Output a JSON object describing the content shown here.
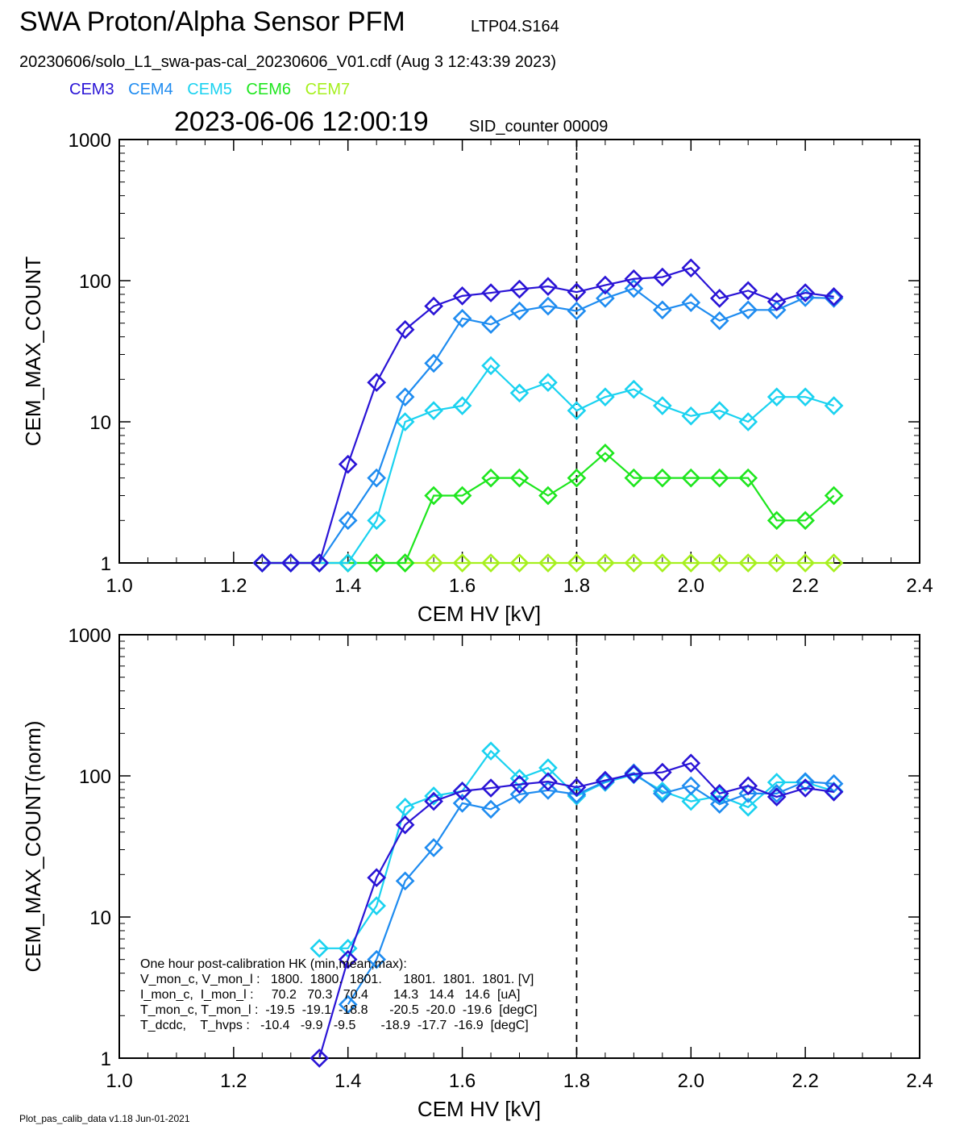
{
  "header": {
    "title": "SWA Proton/Alpha Sensor PFM",
    "file_id": "LTP04.S164",
    "file_line": "20230606/solo_L1_swa-pas-cal_20230606_V01.cdf  (Aug  3 12:43:39 2023)",
    "timestamp": "2023-06-06 12:00:19",
    "sid": "SID_counter 00009"
  },
  "legend": [
    {
      "label": "CEM3",
      "color": "#2a14d6"
    },
    {
      "label": "CEM4",
      "color": "#1f8cf0"
    },
    {
      "label": "CEM5",
      "color": "#1ad2f0"
    },
    {
      "label": "CEM6",
      "color": "#1ee61e"
    },
    {
      "label": "CEM7",
      "color": "#a6f01e"
    }
  ],
  "footer": "Plot_pas_calib_data v1.18 Jun-01-2021",
  "chart_data": [
    {
      "type": "line",
      "xlabel": "CEM HV [kV]",
      "ylabel": "CEM_MAX_COUNT",
      "xlim": [
        1.0,
        2.4
      ],
      "ylim": [
        1,
        1000
      ],
      "yscale": "log",
      "xticks": [
        "1.0",
        "1.2",
        "1.4",
        "1.6",
        "1.8",
        "2.0",
        "2.2",
        "2.4"
      ],
      "yticks": [
        "1",
        "10",
        "100",
        "1000"
      ],
      "vline": 1.8,
      "x": [
        1.25,
        1.3,
        1.35,
        1.4,
        1.45,
        1.5,
        1.55,
        1.6,
        1.65,
        1.7,
        1.75,
        1.8,
        1.85,
        1.9,
        1.95,
        2.0,
        2.05,
        2.1,
        2.15,
        2.2,
        2.25
      ],
      "series": [
        {
          "name": "CEM3",
          "color": "#2a14d6",
          "values": [
            1,
            1,
            1,
            5,
            19,
            45,
            66,
            78,
            82,
            87,
            91,
            83,
            93,
            103,
            106,
            123,
            75,
            85,
            71,
            82,
            77
          ]
        },
        {
          "name": "CEM4",
          "color": "#1f8cf0",
          "values": [
            1,
            1,
            1,
            2,
            4,
            15,
            26,
            54,
            49,
            61,
            66,
            61,
            75,
            88,
            62,
            70,
            52,
            62,
            62,
            76,
            75
          ]
        },
        {
          "name": "CEM5",
          "color": "#1ad2f0",
          "values": [
            1,
            1,
            1,
            1,
            2,
            10,
            12,
            13,
            25,
            16,
            19,
            12,
            15,
            17,
            13,
            11,
            12,
            10,
            15,
            15,
            13
          ]
        },
        {
          "name": "CEM6",
          "color": "#1ee61e",
          "values": [
            1,
            1,
            1,
            1,
            1,
            1,
            3,
            3,
            4,
            4,
            3,
            4,
            6,
            4,
            4,
            4,
            4,
            4,
            2,
            2,
            3
          ]
        },
        {
          "name": "CEM7",
          "color": "#a6f01e",
          "values": [
            1,
            1,
            1,
            1,
            1,
            1,
            1,
            1,
            1,
            1,
            1,
            1,
            1,
            1,
            1,
            1,
            1,
            1,
            1,
            1,
            1
          ]
        }
      ]
    },
    {
      "type": "line",
      "xlabel": "CEM HV [kV]",
      "ylabel": "CEM_MAX_COUNT(norm)",
      "xlim": [
        1.0,
        2.4
      ],
      "ylim": [
        1,
        1000
      ],
      "yscale": "log",
      "xticks": [
        "1.0",
        "1.2",
        "1.4",
        "1.6",
        "1.8",
        "2.0",
        "2.2",
        "2.4"
      ],
      "yticks": [
        "1",
        "10",
        "100",
        "1000"
      ],
      "vline": 1.8,
      "x": [
        1.35,
        1.4,
        1.45,
        1.5,
        1.55,
        1.6,
        1.65,
        1.7,
        1.75,
        1.8,
        1.85,
        1.9,
        1.95,
        2.0,
        2.05,
        2.1,
        2.15,
        2.2,
        2.25
      ],
      "series": [
        {
          "name": "CEM3",
          "color": "#2a14d6",
          "values": [
            1,
            5,
            19,
            45,
            66,
            78,
            82,
            87,
            91,
            83,
            93,
            103,
            106,
            123,
            75,
            85,
            71,
            82,
            77
          ]
        },
        {
          "name": "CEM4",
          "color": "#1f8cf0",
          "values": [
            null,
            2.4,
            5,
            18,
            31,
            64,
            58,
            74,
            79,
            74,
            91,
            105,
            75,
            85,
            63,
            75,
            75,
            91,
            88
          ]
        },
        {
          "name": "CEM5",
          "color": "#1ad2f0",
          "values": [
            6,
            6,
            12,
            60,
            72,
            78,
            150,
            96,
            114,
            72,
            90,
            102,
            78,
            66,
            72,
            60,
            90,
            90,
            78
          ]
        }
      ],
      "annotation": {
        "lines": [
          "One hour post-calibration HK (min,mean,max):",
          "V_mon_c, V_mon_l :   1800.  1800.  1801.      1801.  1801.  1801. [V]",
          "I_mon_c,  I_mon_l :     70.2   70.3   70.4       14.3   14.4   14.6  [uA]",
          "T_mon_c, T_mon_l :  -19.5  -19.1  -18.8      -20.5  -20.0  -19.6  [degC]",
          "T_dcdc,    T_hvps :   -10.4   -9.9   -9.5       -18.9  -17.7  -16.9  [degC]"
        ]
      }
    }
  ]
}
